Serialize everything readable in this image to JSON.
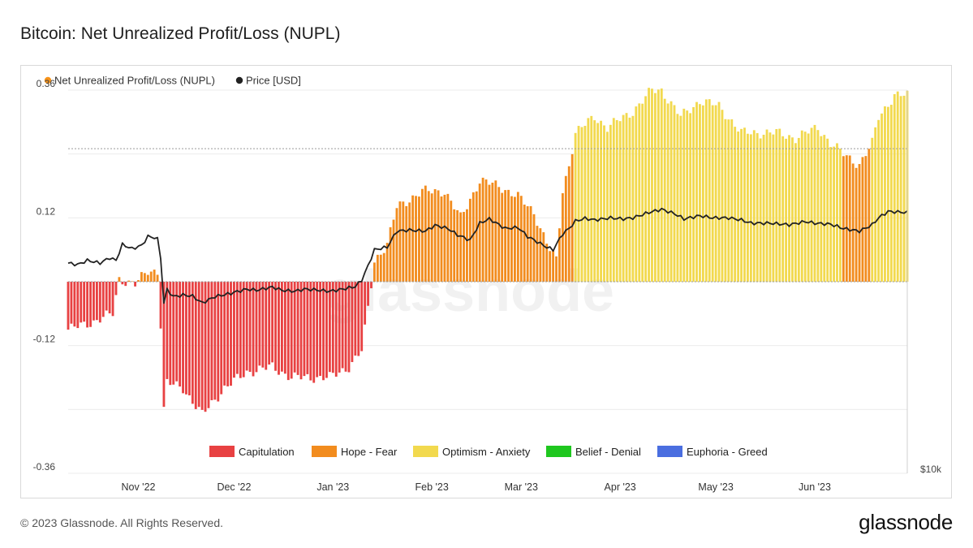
{
  "title": "Bitcoin: Net Unrealized Profit/Loss (NUPL)",
  "footer": {
    "copyright": "© 2023 Glassnode. All Rights Reserved.",
    "brand": "glassnode"
  },
  "watermark": "glassnode",
  "legend_top": [
    {
      "label": "Net Unrealized Profit/Loss (NUPL)",
      "color": "#f7931a"
    },
    {
      "label": "Price [USD]",
      "color": "#222222"
    }
  ],
  "legend_bottom": [
    {
      "label": "Capitulation",
      "color": "#e84142"
    },
    {
      "label": "Hope - Fear",
      "color": "#f28c1e"
    },
    {
      "label": "Optimism - Anxiety",
      "color": "#f2d94e"
    },
    {
      "label": "Belief - Denial",
      "color": "#1fc71f"
    },
    {
      "label": "Euphoria - Greed",
      "color": "#4a6ee0"
    }
  ],
  "colors": {
    "capitulation": "#e84142",
    "hope_fear": "#f28c1e",
    "optimism_anxiety": "#f2d94e",
    "price_line": "#222222",
    "grid": "#ececec",
    "ref_line": "#9a9a9a"
  },
  "chart_data": {
    "type": "bar",
    "title": "Bitcoin: Net Unrealized Profit/Loss (NUPL)",
    "x_start": "2022-10-10",
    "x_end": "2023-06-30",
    "xticks": [
      "Nov '22",
      "Dec '22",
      "Jan '23",
      "Feb '23",
      "Mar '23",
      "Apr '23",
      "May '23",
      "Jun '23"
    ],
    "xtick_dates": [
      "2022-11-01",
      "2022-12-01",
      "2023-01-01",
      "2023-02-01",
      "2023-03-01",
      "2023-04-01",
      "2023-05-01",
      "2023-06-01"
    ],
    "yticks": [
      "0.36",
      "0.12",
      "-0.12",
      "-0.36"
    ],
    "ylim": [
      -0.36,
      0.36
    ],
    "right_axis_label": "$10k",
    "grid": true,
    "reference_lines": [
      0.25,
      0.0
    ],
    "regime_thresholds": {
      "capitulation_below": 0,
      "hope_fear_below": 0.25,
      "optimism_anxiety_below": 0.5,
      "belief_denial_below": 0.75
    },
    "series": [
      {
        "name": "Net Unrealized Profit/Loss (NUPL)",
        "points": [
          [
            "2022-10-10",
            -0.09
          ],
          [
            "2022-10-18",
            -0.075
          ],
          [
            "2022-10-24",
            -0.06
          ],
          [
            "2022-10-26",
            0.005
          ],
          [
            "2022-10-31",
            -0.005
          ],
          [
            "2022-11-04",
            0.02
          ],
          [
            "2022-11-07",
            0.02
          ],
          [
            "2022-11-08",
            -0.08
          ],
          [
            "2022-11-09",
            -0.24
          ],
          [
            "2022-11-10",
            -0.19
          ],
          [
            "2022-11-15",
            -0.2
          ],
          [
            "2022-11-21",
            -0.25
          ],
          [
            "2022-11-28",
            -0.2
          ],
          [
            "2022-12-05",
            -0.17
          ],
          [
            "2022-12-13",
            -0.16
          ],
          [
            "2022-12-19",
            -0.18
          ],
          [
            "2022-12-26",
            -0.18
          ],
          [
            "2022-12-31",
            -0.18
          ],
          [
            "2023-01-06",
            -0.16
          ],
          [
            "2023-01-10",
            -0.13
          ],
          [
            "2023-01-12",
            -0.05
          ],
          [
            "2023-01-14",
            0.04
          ],
          [
            "2023-01-18",
            0.07
          ],
          [
            "2023-01-21",
            0.14
          ],
          [
            "2023-01-29",
            0.17
          ],
          [
            "2023-02-05",
            0.17
          ],
          [
            "2023-02-10",
            0.12
          ],
          [
            "2023-02-16",
            0.19
          ],
          [
            "2023-02-22",
            0.18
          ],
          [
            "2023-02-28",
            0.16
          ],
          [
            "2023-03-05",
            0.13
          ],
          [
            "2023-03-10",
            0.06
          ],
          [
            "2023-03-12",
            0.04
          ],
          [
            "2023-03-14",
            0.17
          ],
          [
            "2023-03-16",
            0.22
          ],
          [
            "2023-03-18",
            0.28
          ],
          [
            "2023-03-24",
            0.31
          ],
          [
            "2023-03-28",
            0.29
          ],
          [
            "2023-04-05",
            0.32
          ],
          [
            "2023-04-11",
            0.36
          ],
          [
            "2023-04-14",
            0.36
          ],
          [
            "2023-04-20",
            0.31
          ],
          [
            "2023-04-26",
            0.34
          ],
          [
            "2023-05-02",
            0.33
          ],
          [
            "2023-05-09",
            0.28
          ],
          [
            "2023-05-15",
            0.28
          ],
          [
            "2023-05-20",
            0.28
          ],
          [
            "2023-05-26",
            0.27
          ],
          [
            "2023-06-02",
            0.29
          ],
          [
            "2023-06-06",
            0.26
          ],
          [
            "2023-06-10",
            0.24
          ],
          [
            "2023-06-15",
            0.22
          ],
          [
            "2023-06-19",
            0.26
          ],
          [
            "2023-06-21",
            0.31
          ],
          [
            "2023-06-26",
            0.35
          ],
          [
            "2023-06-30",
            0.35
          ]
        ]
      },
      {
        "name": "Price [USD]",
        "unit": "NUPL-scale position",
        "points": [
          [
            "2022-10-10",
            0.035
          ],
          [
            "2022-10-13",
            0.032
          ],
          [
            "2022-10-16",
            0.04
          ],
          [
            "2022-10-20",
            0.035
          ],
          [
            "2022-10-23",
            0.045
          ],
          [
            "2022-10-25",
            0.04
          ],
          [
            "2022-10-27",
            0.07
          ],
          [
            "2022-10-30",
            0.062
          ],
          [
            "2022-11-02",
            0.068
          ],
          [
            "2022-11-04",
            0.085
          ],
          [
            "2022-11-06",
            0.083
          ],
          [
            "2022-11-07",
            0.08
          ],
          [
            "2022-11-08",
            0.045
          ],
          [
            "2022-11-09",
            -0.04
          ],
          [
            "2022-11-10",
            -0.015
          ],
          [
            "2022-11-12",
            -0.028
          ],
          [
            "2022-11-15",
            -0.025
          ],
          [
            "2022-11-18",
            -0.027
          ],
          [
            "2022-11-21",
            -0.04
          ],
          [
            "2022-11-25",
            -0.028
          ],
          [
            "2022-11-30",
            -0.022
          ],
          [
            "2022-12-01",
            -0.02
          ],
          [
            "2022-12-05",
            -0.014
          ],
          [
            "2022-12-08",
            -0.016
          ],
          [
            "2022-12-13",
            -0.01
          ],
          [
            "2022-12-16",
            -0.016
          ],
          [
            "2022-12-20",
            -0.018
          ],
          [
            "2022-12-23",
            -0.014
          ],
          [
            "2022-12-26",
            -0.015
          ],
          [
            "2022-12-31",
            -0.018
          ],
          [
            "2023-01-04",
            -0.014
          ],
          [
            "2023-01-08",
            -0.009
          ],
          [
            "2023-01-10",
            0.003
          ],
          [
            "2023-01-12",
            0.03
          ],
          [
            "2023-01-14",
            0.06
          ],
          [
            "2023-01-18",
            0.065
          ],
          [
            "2023-01-21",
            0.095
          ],
          [
            "2023-01-25",
            0.097
          ],
          [
            "2023-01-30",
            0.095
          ],
          [
            "2023-02-02",
            0.106
          ],
          [
            "2023-02-06",
            0.1
          ],
          [
            "2023-02-09",
            0.088
          ],
          [
            "2023-02-13",
            0.078
          ],
          [
            "2023-02-16",
            0.11
          ],
          [
            "2023-02-19",
            0.118
          ],
          [
            "2023-02-24",
            0.1
          ],
          [
            "2023-02-28",
            0.102
          ],
          [
            "2023-03-03",
            0.085
          ],
          [
            "2023-03-09",
            0.065
          ],
          [
            "2023-03-11",
            0.06
          ],
          [
            "2023-03-14",
            0.09
          ],
          [
            "2023-03-16",
            0.1
          ],
          [
            "2023-03-18",
            0.114
          ],
          [
            "2023-03-21",
            0.119
          ],
          [
            "2023-03-24",
            0.116
          ],
          [
            "2023-03-29",
            0.12
          ],
          [
            "2023-04-02",
            0.118
          ],
          [
            "2023-04-05",
            0.12
          ],
          [
            "2023-04-10",
            0.13
          ],
          [
            "2023-04-14",
            0.136
          ],
          [
            "2023-04-18",
            0.128
          ],
          [
            "2023-04-21",
            0.118
          ],
          [
            "2023-04-26",
            0.124
          ],
          [
            "2023-04-30",
            0.12
          ],
          [
            "2023-05-05",
            0.12
          ],
          [
            "2023-05-09",
            0.116
          ],
          [
            "2023-05-12",
            0.11
          ],
          [
            "2023-05-18",
            0.11
          ],
          [
            "2023-05-24",
            0.107
          ],
          [
            "2023-05-29",
            0.113
          ],
          [
            "2023-06-01",
            0.11
          ],
          [
            "2023-06-06",
            0.108
          ],
          [
            "2023-06-10",
            0.1
          ],
          [
            "2023-06-15",
            0.095
          ],
          [
            "2023-06-19",
            0.107
          ],
          [
            "2023-06-21",
            0.12
          ],
          [
            "2023-06-24",
            0.132
          ],
          [
            "2023-06-30",
            0.13
          ]
        ]
      }
    ]
  }
}
